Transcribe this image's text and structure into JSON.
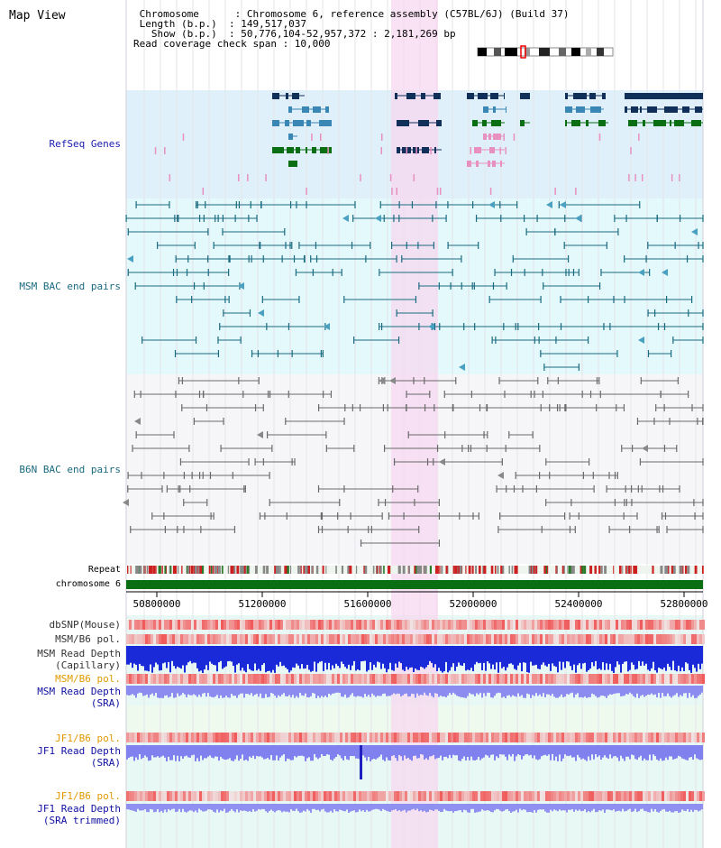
{
  "header": {
    "title": "Map View",
    "info_lines": [
      " Chromosome      : Chromosome 6, reference assembly (C57BL/6J) (Build 37)",
      " Length (b.p.)  : 149,517,037",
      "   Show (b.p.)  : 50,776,104-52,957,372 : 2,181,269 bp",
      "Read coverage check span : 10,000"
    ]
  },
  "tracks": {
    "refseq": "RefSeq Genes",
    "msm_bac": "MSM BAC end pairs",
    "b6n_bac": "B6N BAC end pairs",
    "repeat": "Repeat",
    "chromosome": "chromosome 6",
    "dbsnp": "dbSNP(Mouse)",
    "msm_b6_pol_1": "MSM/B6 pol.",
    "msm_read_depth_cap_1": "MSM Read Depth",
    "msm_read_depth_cap_2": "(Capillary)",
    "msm_b6_pol_2": "MSM/B6 pol.",
    "msm_read_depth_sra_1": "MSM Read Depth",
    "msm_read_depth_sra_2": "(SRA)",
    "jf1_b6_pol_1": "JF1/B6 pol.",
    "jf1_read_depth_sra_1": "JF1 Read Depth",
    "jf1_read_depth_sra_2": "(SRA)",
    "jf1_b6_pol_2": "JF1/B6 pol.",
    "jf1_read_depth_trim_1": "JF1 Read Depth",
    "jf1_read_depth_trim_2": "(SRA trimmed)"
  },
  "axis": {
    "ticks": [
      "50800000",
      "51200000",
      "51600000",
      "52000000",
      "52400000",
      "52800000"
    ]
  },
  "colors": {
    "refseq_bg": "#dff0fa",
    "msm_bg": "#e4f9fb",
    "b6n_bg": "#f6f6f9",
    "highlight": "#f7d8f0",
    "gene_navy": "#10305a",
    "gene_blue": "#3a86b5",
    "gene_green": "#0a6e12",
    "msm_line": "#1a6a80",
    "b6n_line": "#6a6a6a",
    "chromosome_bar": "#0a6e12",
    "label_refseq": "#1a1ab0",
    "label_msm": "#1a6a80",
    "label_b6n": "#1a6a80",
    "label_orange": "#e09a00",
    "label_blue": "#1010a0"
  }
}
